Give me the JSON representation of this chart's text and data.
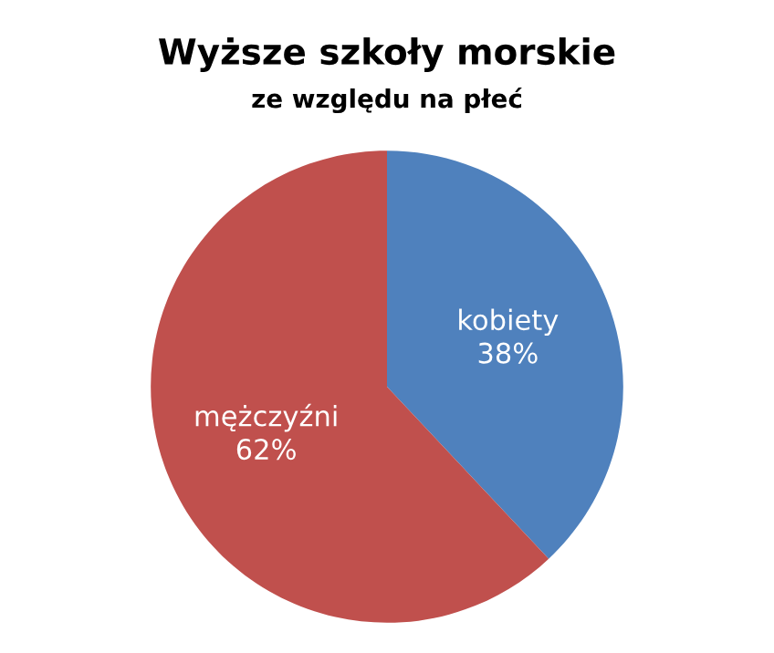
{
  "chart_data": {
    "type": "pie",
    "title": "Wyższe szkoły morskie",
    "subtitle": "ze względu na płeć",
    "categories": [
      "kobiety",
      "mężczyźni"
    ],
    "values": [
      38,
      62
    ],
    "colors": [
      "#4f81bd",
      "#c0504d"
    ],
    "value_labels": [
      "38%",
      "62%"
    ]
  }
}
